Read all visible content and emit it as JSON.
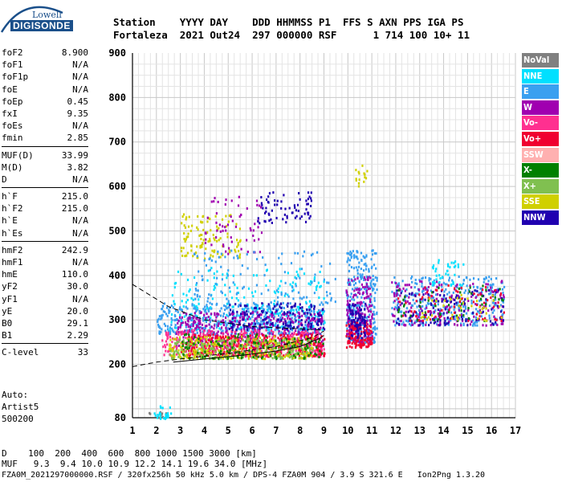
{
  "logo": {
    "line1": "Lowell",
    "line2": "DIGISONDE"
  },
  "header": {
    "labels": "Station    YYYY DAY    DDD HHMMSS P1  FFS S AXN PPS IGA PS",
    "values": "Fortaleza  2021 Out24  297 000000 RSF      1 714 100 10+ 11"
  },
  "params": {
    "group1": [
      {
        "k": "foF2",
        "v": "8.900"
      },
      {
        "k": "foF1",
        "v": "N/A"
      },
      {
        "k": "foF1p",
        "v": "N/A"
      },
      {
        "k": "foE",
        "v": "N/A"
      },
      {
        "k": "foEp",
        "v": "0.45"
      },
      {
        "k": "fxI",
        "v": "9.35"
      },
      {
        "k": "foEs",
        "v": "N/A"
      },
      {
        "k": "fmin",
        "v": "2.85"
      }
    ],
    "group2": [
      {
        "k": "MUF(D)",
        "v": "33.99"
      },
      {
        "k": "M(D)",
        "v": "3.82"
      },
      {
        "k": "D",
        "v": "N/A"
      }
    ],
    "group3": [
      {
        "k": "h`F",
        "v": "215.0"
      },
      {
        "k": "h`F2",
        "v": "215.0"
      },
      {
        "k": "h`E",
        "v": "N/A"
      },
      {
        "k": "h`Es",
        "v": "N/A"
      }
    ],
    "group4": [
      {
        "k": "hmF2",
        "v": "242.9"
      },
      {
        "k": "hmF1",
        "v": "N/A"
      },
      {
        "k": "hmE",
        "v": "110.0"
      },
      {
        "k": "yF2",
        "v": "30.0"
      },
      {
        "k": "yF1",
        "v": "N/A"
      },
      {
        "k": "yE",
        "v": "20.0"
      },
      {
        "k": "B0",
        "v": "29.1"
      },
      {
        "k": "B1",
        "v": "2.29"
      }
    ],
    "group5": [
      {
        "k": "C-level",
        "v": "33"
      }
    ]
  },
  "auto": {
    "line1": "Auto:",
    "line2": "Artist5",
    "line3": "500200"
  },
  "legend": [
    {
      "label": "NoVal",
      "color": "#808080"
    },
    {
      "label": "NNE",
      "color": "#00e0ff"
    },
    {
      "label": "E",
      "color": "#3aa0f0"
    },
    {
      "label": "W",
      "color": "#a000b0"
    },
    {
      "label": "Vo-",
      "color": "#ff3090"
    },
    {
      "label": "Vo+",
      "color": "#f00030"
    },
    {
      "label": "SSW",
      "color": "#ffb0b0"
    },
    {
      "label": "X-",
      "color": "#008000"
    },
    {
      "label": "X+",
      "color": "#80c050"
    },
    {
      "label": "SSE",
      "color": "#d0d000"
    },
    {
      "label": "NNW",
      "color": "#2000b0"
    }
  ],
  "bottom": {
    "d_line": "D    100  200  400  600  800 1000 1500 3000 [km]",
    "muf_line": "MUF   9.3  9.4 10.0 10.9 12.2 14.1 19.6 34.0 [MHz]"
  },
  "footer": "FZA0M_2021297000000.RSF / 320fx256h 50 kHz 5.0 km / DPS-4 FZA0M 904 / 3.9 S 321.6 E   Ion2Png 1.3.20",
  "chart_data": {
    "type": "scatter",
    "xlim": [
      1,
      17
    ],
    "ylim": [
      80,
      900
    ],
    "xticks": [
      "1",
      "2",
      "3",
      "4",
      "5",
      "6",
      "7",
      "8",
      "9",
      "10",
      "11",
      "12",
      "13",
      "14",
      "15",
      "16",
      "17"
    ],
    "yticks": [
      "80",
      "200",
      "300",
      "400",
      "500",
      "600",
      "700",
      "800",
      "900"
    ],
    "grid": true,
    "clusters": [
      {
        "series": "NoVal",
        "x": [
          1.5,
          2.5
        ],
        "y": [
          80,
          95
        ],
        "n": 10
      },
      {
        "series": "NNE",
        "x": [
          1.8,
          2.6
        ],
        "y": [
          80,
          110
        ],
        "n": 25
      },
      {
        "series": "E",
        "x": [
          2.0,
          9.0
        ],
        "y": [
          270,
          340
        ],
        "n": 500
      },
      {
        "series": "NNE",
        "x": [
          2.5,
          9.0
        ],
        "y": [
          280,
          420
        ],
        "n": 220
      },
      {
        "series": "W",
        "x": [
          2.8,
          9.0
        ],
        "y": [
          240,
          320
        ],
        "n": 450
      },
      {
        "series": "Vo-",
        "x": [
          2.2,
          9.0
        ],
        "y": [
          220,
          280
        ],
        "n": 380
      },
      {
        "series": "Vo+",
        "x": [
          3.0,
          9.0
        ],
        "y": [
          220,
          270
        ],
        "n": 350
      },
      {
        "series": "SSE",
        "x": [
          2.5,
          8.5
        ],
        "y": [
          215,
          265
        ],
        "n": 300
      },
      {
        "series": "X+",
        "x": [
          2.5,
          8.5
        ],
        "y": [
          215,
          260
        ],
        "n": 200
      },
      {
        "series": "X-",
        "x": [
          3.0,
          9.0
        ],
        "y": [
          215,
          270
        ],
        "n": 120
      },
      {
        "series": "NNW",
        "x": [
          5.0,
          9.0
        ],
        "y": [
          280,
          340
        ],
        "n": 150
      },
      {
        "series": "SSE",
        "x": [
          3.0,
          5.5
        ],
        "y": [
          440,
          540
        ],
        "n": 110
      },
      {
        "series": "W",
        "x": [
          4.0,
          6.5
        ],
        "y": [
          450,
          580
        ],
        "n": 60
      },
      {
        "series": "NNW",
        "x": [
          6.0,
          8.5
        ],
        "y": [
          520,
          590
        ],
        "n": 70
      },
      {
        "series": "E",
        "x": [
          3.5,
          9.5
        ],
        "y": [
          340,
          460
        ],
        "n": 120
      },
      {
        "series": "E",
        "x": [
          9.9,
          11.2
        ],
        "y": [
          250,
          460
        ],
        "n": 300
      },
      {
        "series": "W",
        "x": [
          9.9,
          11.0
        ],
        "y": [
          250,
          400
        ],
        "n": 200
      },
      {
        "series": "Vo+",
        "x": [
          9.9,
          11.0
        ],
        "y": [
          240,
          300
        ],
        "n": 120
      },
      {
        "series": "NNW",
        "x": [
          10.0,
          10.7
        ],
        "y": [
          260,
          340
        ],
        "n": 80
      },
      {
        "series": "SSE",
        "x": [
          10.3,
          10.8
        ],
        "y": [
          600,
          650
        ],
        "n": 15
      },
      {
        "series": "E",
        "x": [
          11.8,
          16.5
        ],
        "y": [
          290,
          400
        ],
        "n": 320
      },
      {
        "series": "W",
        "x": [
          11.8,
          16.5
        ],
        "y": [
          290,
          390
        ],
        "n": 180
      },
      {
        "series": "NNW",
        "x": [
          12.0,
          16.5
        ],
        "y": [
          290,
          370
        ],
        "n": 120
      },
      {
        "series": "Vo+",
        "x": [
          12.0,
          16.5
        ],
        "y": [
          300,
          380
        ],
        "n": 70
      },
      {
        "series": "X-",
        "x": [
          12.0,
          16.5
        ],
        "y": [
          300,
          380
        ],
        "n": 50
      },
      {
        "series": "SSE",
        "x": [
          13.0,
          16.5
        ],
        "y": [
          300,
          360
        ],
        "n": 40
      },
      {
        "series": "NNE",
        "x": [
          13.5,
          14.8
        ],
        "y": [
          380,
          440
        ],
        "n": 40
      }
    ],
    "profile_curves": [
      {
        "style": "dashed",
        "points": [
          [
            1,
            380
          ],
          [
            2.5,
            330
          ],
          [
            4,
            300
          ],
          [
            6,
            285
          ],
          [
            8,
            280
          ],
          [
            9,
            277
          ]
        ]
      },
      {
        "style": "dashed",
        "points": [
          [
            1,
            195
          ],
          [
            2,
            205
          ],
          [
            3,
            212
          ],
          [
            5,
            225
          ],
          [
            7,
            240
          ],
          [
            8.5,
            260
          ],
          [
            9,
            275
          ]
        ]
      },
      {
        "style": "solid",
        "points": [
          [
            2.7,
            205
          ],
          [
            4,
            212
          ],
          [
            5.5,
            220
          ],
          [
            7,
            230
          ],
          [
            8,
            240
          ],
          [
            8.8,
            258
          ],
          [
            9,
            265
          ]
        ]
      }
    ]
  }
}
